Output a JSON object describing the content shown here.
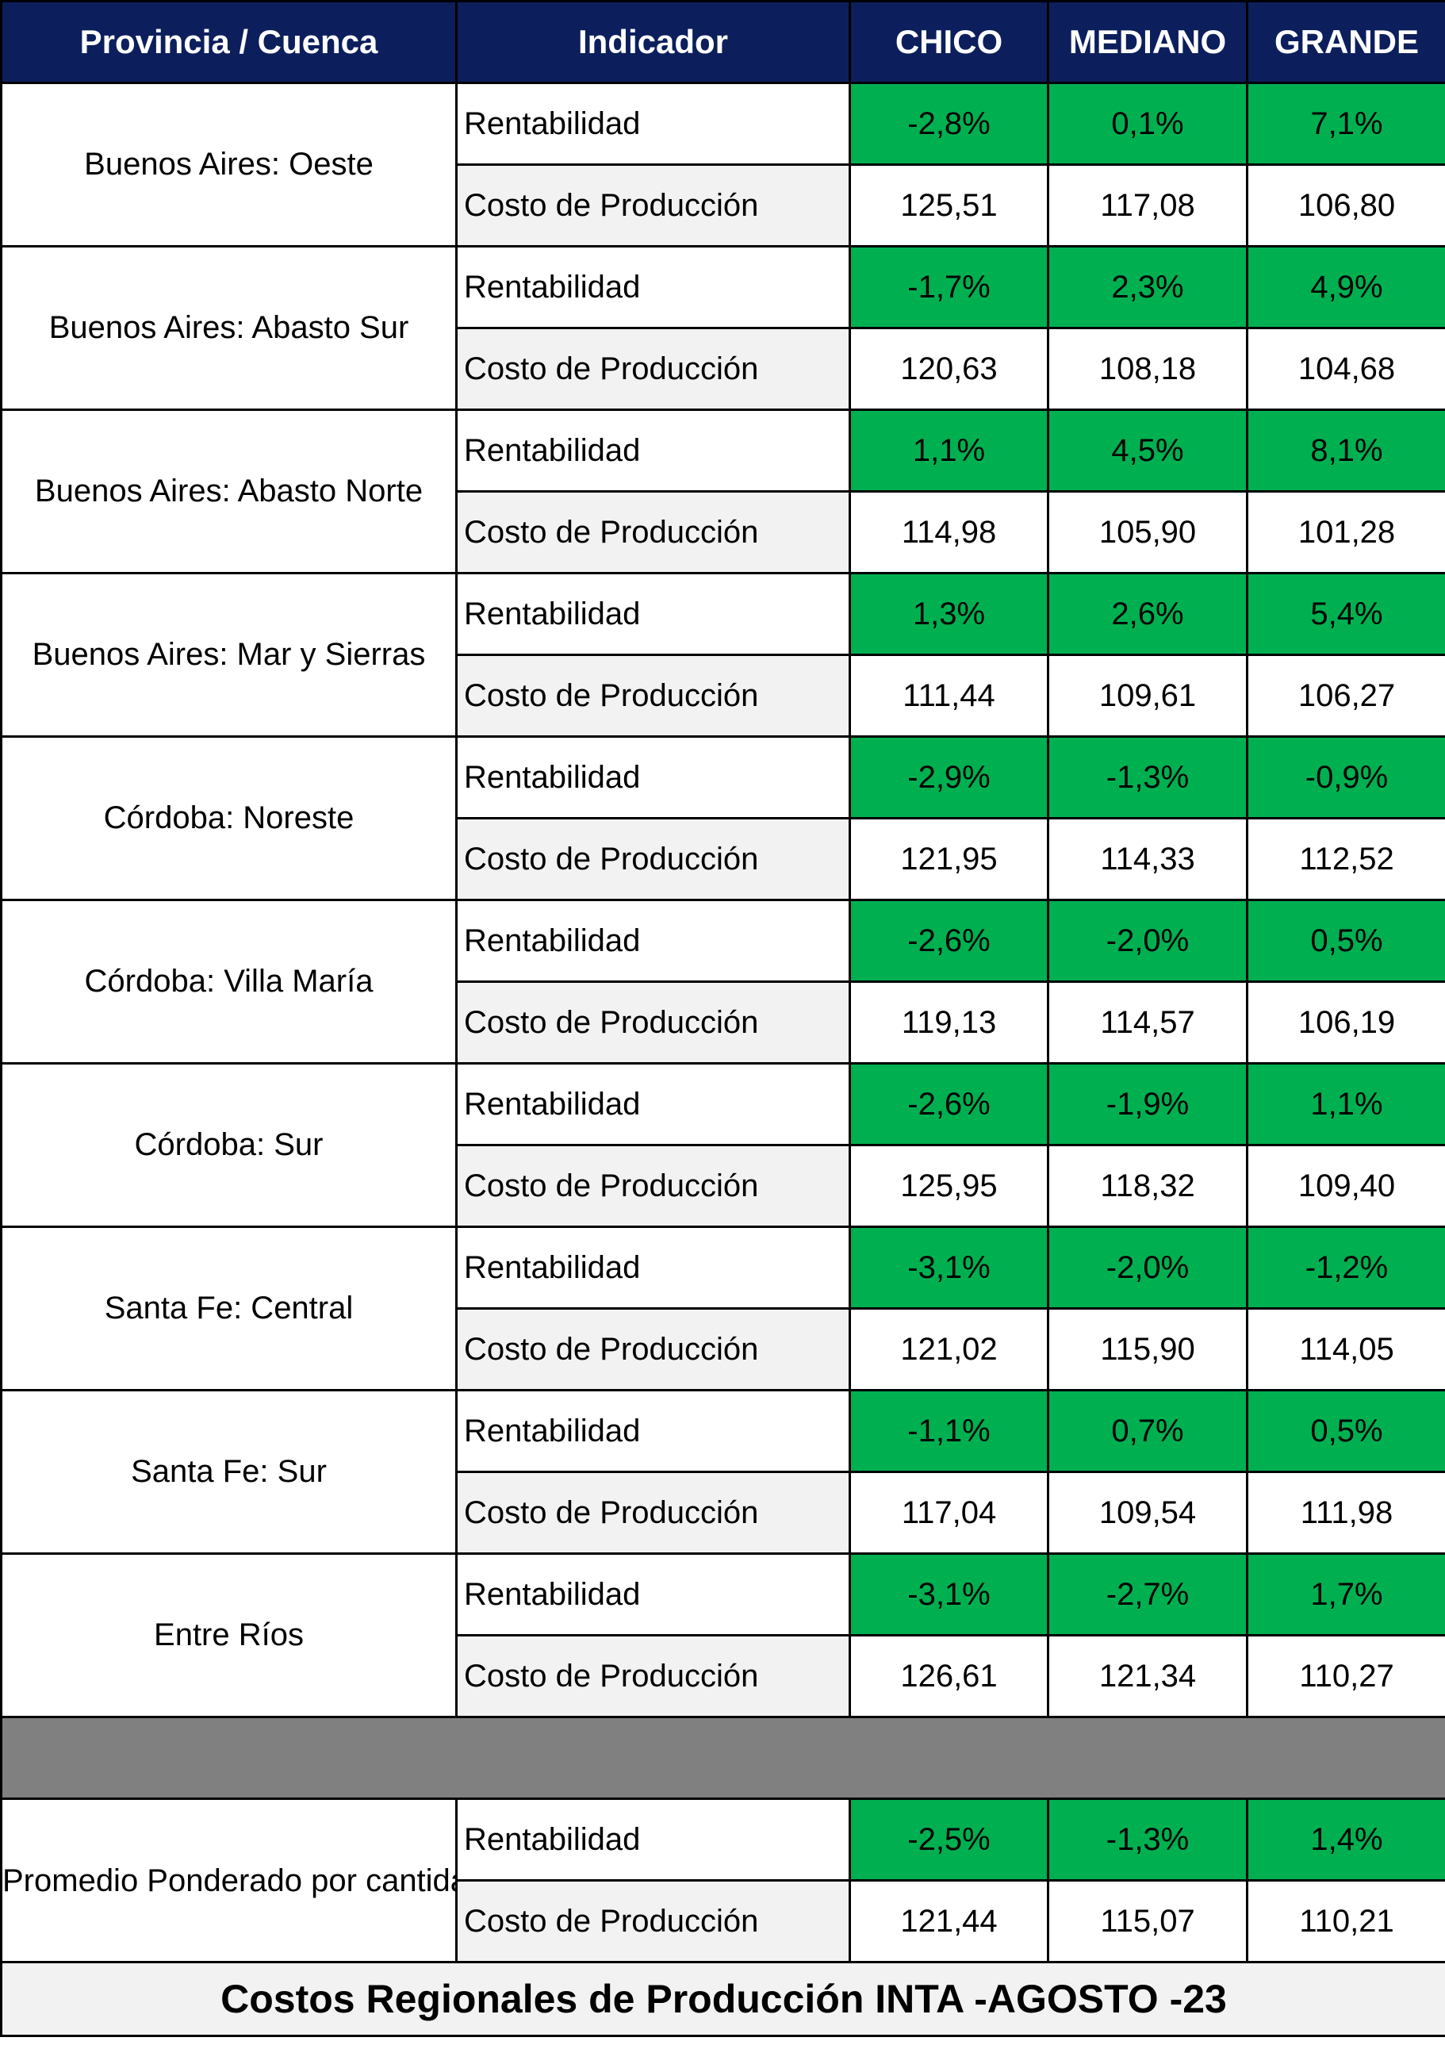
{
  "table": {
    "headers": [
      "Provincia / Cuenca",
      "Indicador",
      "CHICO",
      "MEDIANO",
      "GRANDE"
    ],
    "indicator_labels": {
      "rentabilidad": "Rentabilidad",
      "costo": "Costo de Producción"
    },
    "colors": {
      "header_bg": "#0c1f5c",
      "rentabilidad_bg": "#00b050",
      "separator_bg": "#808080"
    },
    "regions": [
      {
        "name": "Buenos Aires: Oeste",
        "rentabilidad": [
          "-2,8%",
          "0,1%",
          "7,1%"
        ],
        "costo": [
          "125,51",
          "117,08",
          "106,80"
        ]
      },
      {
        "name": "Buenos Aires: Abasto Sur",
        "rentabilidad": [
          "-1,7%",
          "2,3%",
          "4,9%"
        ],
        "costo": [
          "120,63",
          "108,18",
          "104,68"
        ]
      },
      {
        "name": "Buenos Aires: Abasto Norte",
        "rentabilidad": [
          "1,1%",
          "4,5%",
          "8,1%"
        ],
        "costo": [
          "114,98",
          "105,90",
          "101,28"
        ]
      },
      {
        "name": "Buenos Aires: Mar y Sierras",
        "rentabilidad": [
          "1,3%",
          "2,6%",
          "5,4%"
        ],
        "costo": [
          "111,44",
          "109,61",
          "106,27"
        ]
      },
      {
        "name": "Córdoba: Noreste",
        "rentabilidad": [
          "-2,9%",
          "-1,3%",
          "-0,9%"
        ],
        "costo": [
          "121,95",
          "114,33",
          "112,52"
        ]
      },
      {
        "name": "Córdoba: Villa María",
        "rentabilidad": [
          "-2,6%",
          "-2,0%",
          "0,5%"
        ],
        "costo": [
          "119,13",
          "114,57",
          "106,19"
        ]
      },
      {
        "name": "Córdoba: Sur",
        "rentabilidad": [
          "-2,6%",
          "-1,9%",
          "1,1%"
        ],
        "costo": [
          "125,95",
          "118,32",
          "109,40"
        ]
      },
      {
        "name": "Santa Fe: Central",
        "rentabilidad": [
          "-3,1%",
          "-2,0%",
          "-1,2%"
        ],
        "costo": [
          "121,02",
          "115,90",
          "114,05"
        ]
      },
      {
        "name": "Santa Fe: Sur",
        "rentabilidad": [
          "-1,1%",
          "0,7%",
          "0,5%"
        ],
        "costo": [
          "117,04",
          "109,54",
          "111,98"
        ]
      },
      {
        "name": "Entre Ríos",
        "rentabilidad": [
          "-3,1%",
          "-2,7%",
          "1,7%"
        ],
        "costo": [
          "126,61",
          "121,34",
          "110,27"
        ]
      }
    ],
    "summary": {
      "name": "Promedio Ponderado por cantidad  de Unidades Productivas",
      "rentabilidad": [
        "-2,5%",
        "-1,3%",
        "1,4%"
      ],
      "costo": [
        "121,44",
        "115,07",
        "110,21"
      ]
    },
    "footer": "Costos Regionales de Producción INTA -AGOSTO -23"
  }
}
